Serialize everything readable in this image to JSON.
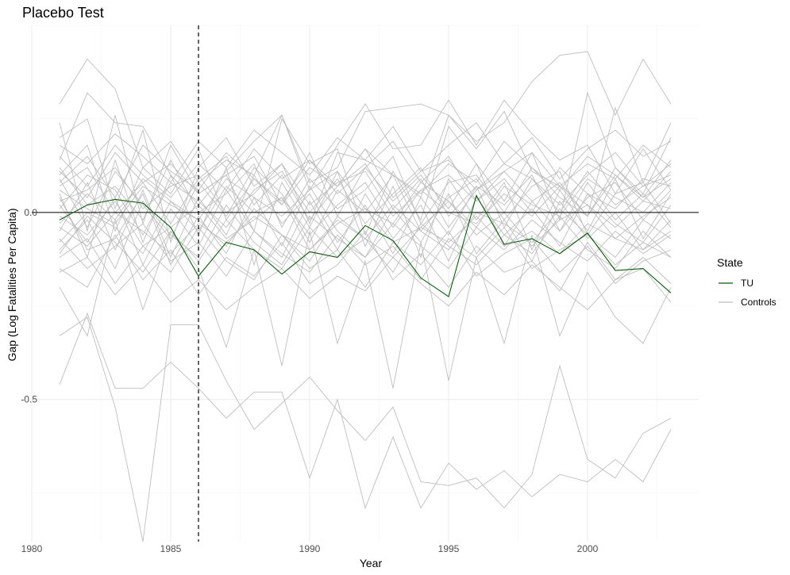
{
  "chart_data": {
    "type": "line",
    "title": "Placebo Test",
    "xlabel": "Year",
    "ylabel": "Gap (Log Fatalities Per Capita)",
    "xlim": [
      1980,
      2004
    ],
    "ylim": [
      -0.88,
      0.5
    ],
    "x_ticks": [
      1980,
      1985,
      1990,
      1995,
      2000
    ],
    "x_tick_labels": [
      "1980",
      "1985",
      "1990",
      "1995",
      "2000"
    ],
    "y_ticks": [
      0.0,
      -0.5
    ],
    "y_tick_labels": [
      "0.0",
      "-0.5"
    ],
    "grid": true,
    "zero_line": 0,
    "treatment_year": 1986,
    "x": [
      1981,
      1982,
      1983,
      1984,
      1985,
      1986,
      1987,
      1988,
      1989,
      1990,
      1991,
      1992,
      1993,
      1994,
      1995,
      1996,
      1997,
      1998,
      1999,
      2000,
      2001,
      2002,
      2003
    ],
    "legend": {
      "title": "State",
      "position": "right",
      "entries": [
        {
          "label": "TU",
          "color": "#006400"
        },
        {
          "label": "Controls",
          "color": "#bebebe"
        }
      ]
    },
    "series": [
      {
        "name": "TU",
        "role": "treated",
        "color": "#006400",
        "values": [
          -0.02,
          0.02,
          0.035,
          0.025,
          -0.04,
          -0.17,
          -0.08,
          -0.1,
          -0.165,
          -0.105,
          -0.12,
          -0.035,
          -0.075,
          -0.175,
          -0.225,
          0.045,
          -0.085,
          -0.07,
          -0.11,
          -0.055,
          -0.155,
          -0.15,
          -0.215
        ]
      },
      {
        "role": "control",
        "values": [
          -0.46,
          -0.27,
          -0.47,
          -0.47,
          -0.4,
          -0.47,
          -0.55,
          -0.48,
          -0.48,
          -0.71,
          -0.5,
          -0.79,
          -0.6,
          -0.79,
          -0.67,
          -0.74,
          -0.69,
          -0.76,
          -0.7,
          -0.72,
          -0.66,
          -0.72,
          -0.58
        ]
      },
      {
        "role": "control",
        "values": [
          -0.33,
          -0.28,
          -0.52,
          -0.88,
          -0.3,
          -0.3,
          -0.45,
          -0.58,
          -0.51,
          -0.44,
          -0.53,
          -0.61,
          -0.52,
          -0.72,
          -0.73,
          -0.71,
          -0.79,
          -0.7,
          -0.41,
          -0.66,
          -0.71,
          -0.59,
          -0.55
        ]
      },
      {
        "role": "control",
        "values": [
          0.29,
          0.41,
          0.33,
          0.12,
          0.19,
          0.08,
          0.14,
          0.1,
          0.26,
          0.08,
          0.12,
          0.27,
          0.28,
          0.29,
          0.26,
          0.19,
          0.24,
          0.35,
          0.42,
          0.43,
          0.26,
          0.41,
          0.29
        ]
      },
      {
        "role": "control",
        "values": [
          0.14,
          0.32,
          0.24,
          0.23,
          0.1,
          0.02,
          0.11,
          0.19,
          0.26,
          0.06,
          0.18,
          0.29,
          0.17,
          0.18,
          0.3,
          0.18,
          0.3,
          0.21,
          0.14,
          0.18,
          0.05,
          0.17,
          0.06
        ]
      },
      {
        "role": "control",
        "values": [
          0.24,
          -0.05,
          0.26,
          -0.03,
          0.18,
          0.05,
          0.1,
          -0.05,
          0.25,
          0.13,
          0.17,
          -0.06,
          0.11,
          -0.02,
          0.23,
          0.13,
          0.03,
          0.16,
          -0.02,
          0.32,
          0.12,
          0.05,
          0.2
        ]
      },
      {
        "role": "control",
        "values": [
          0.2,
          0.25,
          0.01,
          0.22,
          -0.08,
          0.12,
          0.2,
          0.07,
          0.13,
          -0.03,
          0.16,
          0.14,
          0.1,
          0.04,
          0.26,
          0.17,
          0.27,
          0.11,
          0.07,
          -0.01,
          0.28,
          0.08,
          0.24
        ]
      },
      {
        "role": "control",
        "values": [
          0.1,
          0.18,
          -0.05,
          0.12,
          0.05,
          0.17,
          -0.02,
          0.09,
          0.02,
          0.16,
          -0.01,
          0.12,
          0.03,
          0.1,
          0.01,
          0.13,
          -0.04,
          0.09,
          0.0,
          0.11,
          0.02,
          0.07,
          0.1
        ]
      },
      {
        "role": "control",
        "values": [
          0.05,
          -0.12,
          0.14,
          -0.08,
          0.1,
          -0.06,
          0.12,
          -0.14,
          0.08,
          -0.04,
          0.11,
          -0.09,
          0.07,
          -0.12,
          0.09,
          -0.02,
          0.08,
          -0.1,
          0.06,
          -0.05,
          0.09,
          -0.07,
          0.05
        ]
      },
      {
        "role": "control",
        "values": [
          -0.05,
          0.08,
          -0.1,
          0.06,
          -0.12,
          0.04,
          -0.06,
          0.1,
          -0.03,
          0.05,
          -0.08,
          0.02,
          -0.11,
          0.04,
          -0.06,
          0.07,
          -0.09,
          0.03,
          -0.05,
          0.08,
          -0.02,
          0.05,
          -0.04
        ]
      },
      {
        "role": "control",
        "values": [
          0.12,
          0.02,
          0.07,
          -0.02,
          0.14,
          0.0,
          0.05,
          0.13,
          -0.04,
          0.09,
          0.01,
          0.06,
          0.15,
          -0.03,
          0.08,
          0.1,
          0.0,
          0.12,
          0.04,
          -0.01,
          0.1,
          0.03,
          0.11
        ]
      },
      {
        "role": "control",
        "values": [
          -0.1,
          -0.02,
          -0.15,
          0.03,
          -0.06,
          -0.12,
          0.02,
          -0.08,
          -0.14,
          -0.01,
          -0.07,
          -0.12,
          -0.03,
          -0.09,
          -0.15,
          -0.04,
          -0.1,
          -0.02,
          -0.08,
          -0.13,
          -0.05,
          -0.11,
          -0.06
        ]
      },
      {
        "role": "control",
        "values": [
          0.02,
          -0.08,
          0.04,
          -0.14,
          0.01,
          -0.09,
          0.06,
          -0.05,
          -0.12,
          0.03,
          -0.1,
          0.05,
          -0.07,
          0.02,
          -0.13,
          0.04,
          -0.06,
          0.01,
          -0.09,
          0.05,
          -0.03,
          -0.08,
          0.02
        ]
      },
      {
        "role": "control",
        "values": [
          -0.15,
          -0.2,
          -0.06,
          -0.18,
          -0.1,
          -0.22,
          -0.12,
          -0.17,
          -0.08,
          -0.19,
          -0.14,
          -0.05,
          -0.18,
          -0.11,
          -0.2,
          -0.09,
          -0.16,
          -0.13,
          -0.21,
          -0.08,
          -0.18,
          -0.12,
          -0.19
        ]
      },
      {
        "role": "control",
        "values": [
          0.07,
          0.12,
          0.0,
          0.08,
          -0.03,
          0.09,
          0.15,
          0.02,
          0.1,
          -0.02,
          0.07,
          0.13,
          0.01,
          0.09,
          -0.04,
          0.06,
          0.11,
          0.03,
          0.08,
          -0.01,
          0.12,
          0.04,
          0.09
        ]
      },
      {
        "role": "control",
        "values": [
          -0.2,
          -0.33,
          -0.02,
          -0.26,
          -0.05,
          -0.15,
          -0.36,
          -0.1,
          -0.41,
          -0.05,
          -0.35,
          -0.13,
          -0.47,
          -0.08,
          -0.45,
          -0.12,
          -0.35,
          -0.06,
          -0.33,
          -0.16,
          -0.28,
          -0.35,
          -0.2
        ]
      },
      {
        "role": "control",
        "values": [
          -0.03,
          0.05,
          -0.02,
          0.09,
          0.03,
          -0.05,
          0.07,
          0.0,
          0.04,
          -0.06,
          0.02,
          0.08,
          -0.04,
          0.06,
          0.0,
          -0.03,
          0.05,
          -0.01,
          0.07,
          0.02,
          -0.04,
          0.03,
          0.01
        ]
      },
      {
        "role": "control",
        "values": [
          0.09,
          -0.04,
          0.11,
          0.02,
          -0.07,
          0.08,
          -0.01,
          0.12,
          0.05,
          -0.08,
          0.06,
          0.0,
          0.1,
          -0.05,
          0.04,
          0.09,
          -0.02,
          0.07,
          0.11,
          -0.06,
          0.05,
          0.08,
          -0.03
        ]
      },
      {
        "role": "control",
        "values": [
          -0.08,
          0.0,
          -0.04,
          -0.11,
          0.03,
          -0.02,
          -0.09,
          0.01,
          -0.06,
          -0.13,
          -0.01,
          -0.07,
          0.02,
          -0.05,
          -0.1,
          0.0,
          -0.03,
          -0.08,
          0.01,
          -0.06,
          -0.12,
          -0.02,
          -0.07
        ]
      },
      {
        "role": "control",
        "values": [
          0.15,
          0.07,
          0.18,
          0.1,
          0.04,
          0.13,
          0.06,
          0.17,
          0.09,
          0.14,
          0.05,
          0.12,
          0.19,
          0.08,
          0.15,
          0.03,
          0.11,
          0.16,
          0.07,
          0.13,
          0.09,
          0.18,
          0.12
        ]
      },
      {
        "role": "control",
        "values": [
          -0.12,
          -0.07,
          -0.19,
          -0.09,
          -0.16,
          -0.04,
          -0.13,
          -0.18,
          -0.06,
          -0.15,
          -0.1,
          -0.2,
          -0.08,
          -0.14,
          -0.05,
          -0.17,
          -0.11,
          -0.07,
          -0.16,
          -0.09,
          -0.19,
          -0.13,
          -0.1
        ]
      },
      {
        "role": "control",
        "values": [
          0.01,
          0.1,
          0.06,
          -0.06,
          0.08,
          0.03,
          -0.04,
          0.06,
          0.11,
          0.0,
          0.09,
          -0.03,
          0.05,
          0.12,
          -0.01,
          0.07,
          0.02,
          0.1,
          -0.05,
          0.04,
          0.08,
          -0.02,
          0.06
        ]
      },
      {
        "role": "control",
        "values": [
          0.04,
          -0.1,
          -0.07,
          0.05,
          -0.14,
          -0.01,
          -0.11,
          0.04,
          -0.09,
          0.07,
          -0.05,
          -0.12,
          0.01,
          -0.08,
          0.05,
          -0.11,
          -0.02,
          -0.13,
          0.03,
          -0.07,
          0.0,
          -0.1,
          -0.05
        ]
      },
      {
        "role": "control",
        "values": [
          -0.16,
          -0.12,
          -0.22,
          -0.14,
          -0.24,
          -0.18,
          -0.26,
          -0.2,
          -0.15,
          -0.23,
          -0.17,
          -0.21,
          -0.12,
          -0.19,
          -0.25,
          -0.16,
          -0.22,
          -0.14,
          -0.2,
          -0.26,
          -0.18,
          -0.15,
          -0.24
        ]
      },
      {
        "role": "control",
        "values": [
          0.18,
          0.13,
          0.21,
          0.15,
          0.08,
          0.19,
          0.12,
          0.22,
          0.16,
          0.1,
          0.2,
          0.14,
          0.23,
          0.11,
          0.18,
          0.24,
          0.13,
          0.2,
          0.09,
          0.17,
          0.22,
          0.15,
          0.19
        ]
      },
      {
        "role": "control",
        "values": [
          -0.01,
          -0.06,
          0.03,
          -0.09,
          -0.04,
          0.02,
          -0.07,
          -0.02,
          0.04,
          -0.1,
          -0.03,
          0.01,
          -0.08,
          -0.04,
          0.03,
          -0.06,
          0.0,
          -0.09,
          -0.02,
          0.02,
          -0.07,
          -0.01,
          0.04
        ]
      },
      {
        "role": "control",
        "values": [
          0.08,
          0.15,
          0.04,
          0.18,
          0.11,
          0.06,
          0.16,
          0.09,
          0.03,
          0.14,
          0.07,
          0.17,
          0.1,
          0.05,
          0.13,
          0.08,
          0.19,
          0.12,
          0.06,
          0.15,
          0.1,
          0.04,
          0.14
        ]
      },
      {
        "role": "control",
        "values": [
          -0.07,
          -0.15,
          -0.09,
          -0.03,
          -0.13,
          -0.08,
          -0.17,
          -0.05,
          -0.11,
          -0.16,
          -0.06,
          -0.14,
          -0.09,
          -0.18,
          -0.07,
          -0.12,
          -0.04,
          -0.15,
          -0.1,
          -0.06,
          -0.14,
          -0.08,
          -0.12
        ]
      },
      {
        "role": "control",
        "values": [
          0.03,
          0.06,
          0.12,
          0.01,
          0.07,
          0.1,
          0.0,
          0.05,
          0.13,
          0.02,
          0.08,
          0.11,
          -0.01,
          0.06,
          0.1,
          0.03,
          0.09,
          0.0,
          0.12,
          0.05,
          0.01,
          0.09,
          0.07
        ]
      },
      {
        "role": "control",
        "values": [
          -0.11,
          -0.01,
          -0.08,
          -0.16,
          -0.05,
          -0.13,
          -0.02,
          -0.1,
          -0.15,
          -0.04,
          -0.12,
          -0.07,
          -0.16,
          -0.03,
          -0.09,
          -0.14,
          -0.06,
          -0.11,
          -0.01,
          -0.1,
          -0.15,
          -0.05,
          -0.12
        ]
      },
      {
        "role": "control",
        "values": [
          0.11,
          0.04,
          0.16,
          0.08,
          0.13,
          0.05,
          0.1,
          0.15,
          0.02,
          0.12,
          0.07,
          0.17,
          0.04,
          0.11,
          0.14,
          0.06,
          0.13,
          0.09,
          0.02,
          0.1,
          0.16,
          0.07,
          0.13
        ]
      },
      {
        "role": "control",
        "values": [
          -0.04,
          -0.09,
          0.0,
          -0.05,
          -0.11,
          -0.03,
          -0.08,
          -0.01,
          -0.06,
          -0.1,
          -0.02,
          -0.07,
          -0.12,
          -0.04,
          -0.08,
          -0.01,
          -0.09,
          -0.05,
          -0.11,
          -0.03,
          -0.07,
          -0.1,
          -0.02
        ]
      },
      {
        "role": "control",
        "values": [
          0.06,
          0.01,
          -0.03,
          0.07,
          0.02,
          -0.02,
          0.09,
          0.04,
          -0.01,
          0.06,
          0.11,
          0.01,
          -0.03,
          0.08,
          0.03,
          -0.04,
          0.07,
          0.02,
          -0.01,
          0.09,
          0.04,
          0.0,
          0.08
        ]
      }
    ]
  }
}
